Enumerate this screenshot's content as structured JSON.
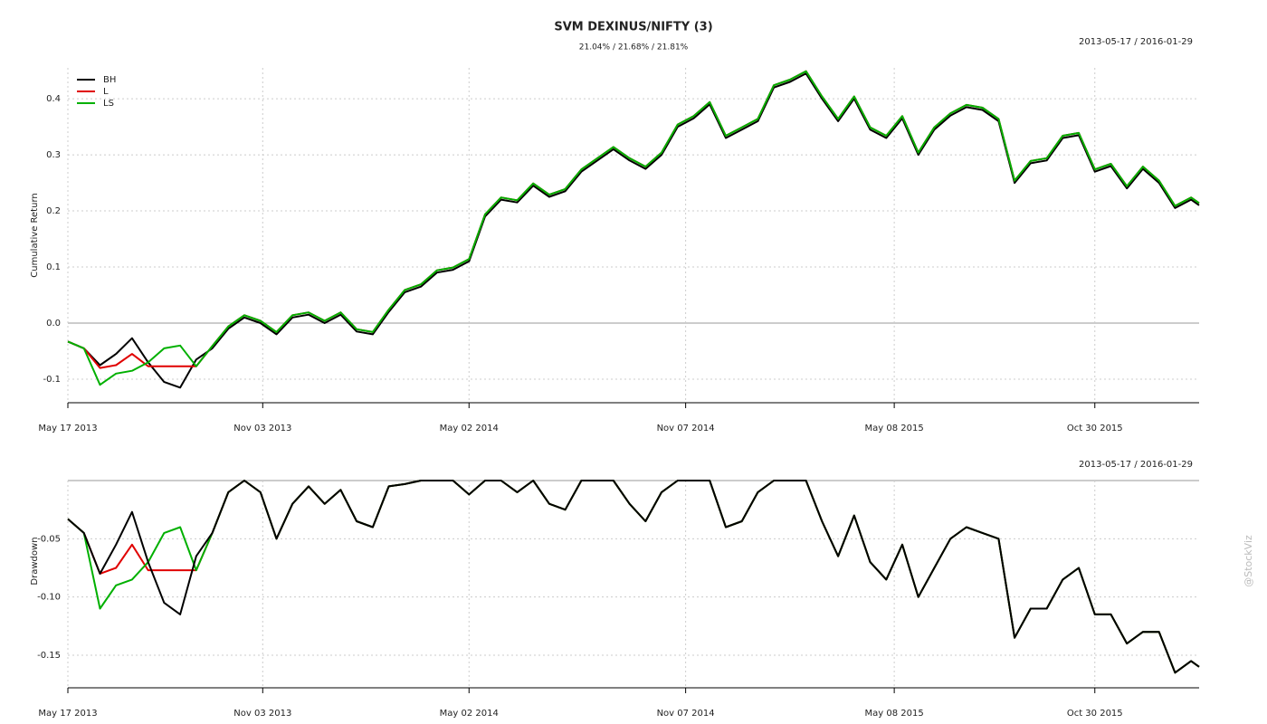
{
  "chart_data": [
    {
      "type": "line",
      "title": "SVM DEXINUS/NIFTY (3)",
      "subtitle": "21.04% / 21.68% / 21.81%",
      "date_range": "2013-05-17 / 2016-01-29",
      "ylabel": "Cumulative Return",
      "x": [
        "2013-05-17",
        "2013-05-31",
        "2013-06-14",
        "2013-06-28",
        "2013-07-12",
        "2013-07-26",
        "2013-08-09",
        "2013-08-23",
        "2013-09-06",
        "2013-09-20",
        "2013-10-04",
        "2013-10-18",
        "2013-11-01",
        "2013-11-15",
        "2013-11-29",
        "2013-12-13",
        "2013-12-27",
        "2014-01-10",
        "2014-01-24",
        "2014-02-07",
        "2014-02-21",
        "2014-03-07",
        "2014-03-21",
        "2014-04-04",
        "2014-04-18",
        "2014-05-02",
        "2014-05-16",
        "2014-05-30",
        "2014-06-13",
        "2014-06-27",
        "2014-07-11",
        "2014-07-25",
        "2014-08-08",
        "2014-08-22",
        "2014-09-05",
        "2014-09-19",
        "2014-10-03",
        "2014-10-17",
        "2014-10-31",
        "2014-11-14",
        "2014-11-28",
        "2014-12-12",
        "2014-12-26",
        "2015-01-09",
        "2015-01-23",
        "2015-02-06",
        "2015-02-20",
        "2015-03-06",
        "2015-03-20",
        "2015-04-03",
        "2015-04-17",
        "2015-05-01",
        "2015-05-15",
        "2015-05-29",
        "2015-06-12",
        "2015-06-26",
        "2015-07-10",
        "2015-07-24",
        "2015-08-07",
        "2015-08-21",
        "2015-09-04",
        "2015-09-18",
        "2015-10-02",
        "2015-10-16",
        "2015-10-30",
        "2015-11-13",
        "2015-11-27",
        "2015-12-11",
        "2015-12-25",
        "2016-01-08",
        "2016-01-22",
        "2016-01-29"
      ],
      "series": [
        {
          "name": "BH",
          "color": "#000000",
          "values": [
            -0.033,
            -0.045,
            -0.075,
            -0.055,
            -0.027,
            -0.07,
            -0.105,
            -0.115,
            -0.065,
            -0.045,
            -0.01,
            0.01,
            0.0,
            -0.02,
            0.01,
            0.015,
            0.0,
            0.015,
            -0.015,
            -0.02,
            0.02,
            0.055,
            0.065,
            0.09,
            0.095,
            0.11,
            0.19,
            0.22,
            0.215,
            0.245,
            0.225,
            0.235,
            0.27,
            0.29,
            0.31,
            0.29,
            0.275,
            0.3,
            0.35,
            0.365,
            0.39,
            0.33,
            0.345,
            0.36,
            0.42,
            0.43,
            0.445,
            0.4,
            0.36,
            0.4,
            0.345,
            0.33,
            0.365,
            0.3,
            0.345,
            0.37,
            0.385,
            0.38,
            0.36,
            0.25,
            0.285,
            0.29,
            0.33,
            0.335,
            0.27,
            0.28,
            0.24,
            0.275,
            0.25,
            0.205,
            0.22,
            0.21
          ]
        },
        {
          "name": "L",
          "color": "#e00000",
          "values": [
            -0.033,
            -0.045,
            -0.08,
            -0.075,
            -0.055,
            -0.077,
            -0.077,
            -0.077,
            -0.077,
            -0.041,
            -0.006,
            0.014,
            0.004,
            -0.016,
            0.014,
            0.019,
            0.004,
            0.019,
            -0.011,
            -0.016,
            0.024,
            0.059,
            0.069,
            0.094,
            0.099,
            0.114,
            0.194,
            0.224,
            0.219,
            0.249,
            0.229,
            0.239,
            0.274,
            0.294,
            0.314,
            0.294,
            0.279,
            0.304,
            0.354,
            0.369,
            0.394,
            0.334,
            0.349,
            0.364,
            0.424,
            0.434,
            0.449,
            0.404,
            0.364,
            0.404,
            0.349,
            0.334,
            0.369,
            0.304,
            0.349,
            0.374,
            0.389,
            0.384,
            0.364,
            0.254,
            0.289,
            0.294,
            0.334,
            0.339,
            0.274,
            0.284,
            0.244,
            0.279,
            0.254,
            0.209,
            0.224,
            0.214
          ]
        },
        {
          "name": "LS",
          "color": "#00b000",
          "values": [
            -0.033,
            -0.045,
            -0.11,
            -0.09,
            -0.085,
            -0.07,
            -0.045,
            -0.04,
            -0.077,
            -0.041,
            -0.006,
            0.014,
            0.004,
            -0.016,
            0.014,
            0.019,
            0.004,
            0.019,
            -0.011,
            -0.016,
            0.024,
            0.059,
            0.069,
            0.094,
            0.099,
            0.114,
            0.194,
            0.224,
            0.219,
            0.249,
            0.229,
            0.239,
            0.274,
            0.294,
            0.314,
            0.294,
            0.279,
            0.304,
            0.354,
            0.369,
            0.394,
            0.334,
            0.349,
            0.364,
            0.424,
            0.434,
            0.449,
            0.404,
            0.364,
            0.404,
            0.349,
            0.334,
            0.369,
            0.304,
            0.349,
            0.374,
            0.389,
            0.384,
            0.364,
            0.254,
            0.289,
            0.294,
            0.334,
            0.339,
            0.274,
            0.284,
            0.244,
            0.279,
            0.254,
            0.209,
            0.224,
            0.214
          ]
        }
      ],
      "ylim": [
        -0.142,
        0.455
      ],
      "yticks": [
        -0.1,
        {
          "value": 0,
          "label": "0.0"
        },
        0.1,
        0.2,
        0.3,
        0.4
      ],
      "xticks": [
        {
          "value": "2013-05-17",
          "label": "May 17 2013"
        },
        {
          "value": "2013-11-03",
          "label": "Nov 03 2013"
        },
        {
          "value": "2014-05-02",
          "label": "May 02 2014"
        },
        {
          "value": "2014-11-07",
          "label": "Nov 07 2014"
        },
        {
          "value": "2015-05-08",
          "label": "May 08 2015"
        },
        {
          "value": "2015-10-30",
          "label": "Oct 30 2015"
        }
      ],
      "legend": "top-left",
      "grid": true
    },
    {
      "type": "line",
      "date_range": "2013-05-17 / 2016-01-29",
      "ylabel": "Drawdown",
      "x": [
        "2013-05-17",
        "2013-05-31",
        "2013-06-14",
        "2013-06-28",
        "2013-07-12",
        "2013-07-26",
        "2013-08-09",
        "2013-08-23",
        "2013-09-06",
        "2013-09-20",
        "2013-10-04",
        "2013-10-18",
        "2013-11-01",
        "2013-11-15",
        "2013-11-29",
        "2013-12-13",
        "2013-12-27",
        "2014-01-10",
        "2014-01-24",
        "2014-02-07",
        "2014-02-21",
        "2014-03-07",
        "2014-03-21",
        "2014-04-04",
        "2014-04-18",
        "2014-05-02",
        "2014-05-16",
        "2014-05-30",
        "2014-06-13",
        "2014-06-27",
        "2014-07-11",
        "2014-07-25",
        "2014-08-08",
        "2014-08-22",
        "2014-09-05",
        "2014-09-19",
        "2014-10-03",
        "2014-10-17",
        "2014-10-31",
        "2014-11-14",
        "2014-11-28",
        "2014-12-12",
        "2014-12-26",
        "2015-01-09",
        "2015-01-23",
        "2015-02-06",
        "2015-02-20",
        "2015-03-06",
        "2015-03-20",
        "2015-04-03",
        "2015-04-17",
        "2015-05-01",
        "2015-05-15",
        "2015-05-29",
        "2015-06-12",
        "2015-06-26",
        "2015-07-10",
        "2015-07-24",
        "2015-08-07",
        "2015-08-21",
        "2015-09-04",
        "2015-09-18",
        "2015-10-02",
        "2015-10-16",
        "2015-10-30",
        "2015-11-13",
        "2015-11-27",
        "2015-12-11",
        "2015-12-25",
        "2016-01-08",
        "2016-01-22",
        "2016-01-29"
      ],
      "series": [
        {
          "name": "L",
          "color": "#e00000",
          "values": [
            -0.033,
            -0.045,
            -0.08,
            -0.075,
            -0.055,
            -0.077,
            -0.077,
            -0.077,
            -0.077,
            -0.045,
            -0.01,
            0,
            -0.01,
            -0.05,
            -0.02,
            -0.005,
            -0.02,
            -0.008,
            -0.035,
            -0.04,
            -0.005,
            -0.003,
            0,
            0,
            0,
            -0.012,
            0,
            0,
            -0.01,
            0,
            -0.02,
            -0.025,
            0,
            0,
            0,
            -0.02,
            -0.035,
            -0.01,
            0,
            0,
            0,
            -0.04,
            -0.035,
            -0.01,
            0,
            0,
            0,
            -0.035,
            -0.065,
            -0.03,
            -0.07,
            -0.085,
            -0.055,
            -0.1,
            -0.075,
            -0.05,
            -0.04,
            -0.045,
            -0.05,
            -0.135,
            -0.11,
            -0.11,
            -0.085,
            -0.075,
            -0.115,
            -0.115,
            -0.14,
            -0.13,
            -0.13,
            -0.165,
            -0.155,
            -0.16
          ]
        },
        {
          "name": "LS",
          "color": "#00b000",
          "values": [
            -0.033,
            -0.045,
            -0.11,
            -0.09,
            -0.085,
            -0.07,
            -0.045,
            -0.04,
            -0.077,
            -0.045,
            -0.01,
            0,
            -0.01,
            -0.05,
            -0.02,
            -0.005,
            -0.02,
            -0.008,
            -0.035,
            -0.04,
            -0.005,
            -0.003,
            0,
            0,
            0,
            -0.012,
            0,
            0,
            -0.01,
            0,
            -0.02,
            -0.025,
            0,
            0,
            0,
            -0.02,
            -0.035,
            -0.01,
            0,
            0,
            0,
            -0.04,
            -0.035,
            -0.01,
            0,
            0,
            0,
            -0.035,
            -0.065,
            -0.03,
            -0.07,
            -0.085,
            -0.055,
            -0.1,
            -0.075,
            -0.05,
            -0.04,
            -0.045,
            -0.05,
            -0.135,
            -0.11,
            -0.11,
            -0.085,
            -0.075,
            -0.115,
            -0.115,
            -0.14,
            -0.13,
            -0.13,
            -0.165,
            -0.155,
            -0.16
          ]
        },
        {
          "name": "BH",
          "color": "#000000",
          "values": [
            -0.033,
            -0.045,
            -0.08,
            -0.055,
            -0.027,
            -0.07,
            -0.105,
            -0.115,
            -0.065,
            -0.045,
            -0.01,
            0,
            -0.01,
            -0.05,
            -0.02,
            -0.005,
            -0.02,
            -0.008,
            -0.035,
            -0.04,
            -0.005,
            -0.003,
            0,
            0,
            0,
            -0.012,
            0,
            0,
            -0.01,
            0,
            -0.02,
            -0.025,
            0,
            0,
            0,
            -0.02,
            -0.035,
            -0.01,
            0,
            0,
            0,
            -0.04,
            -0.035,
            -0.01,
            0,
            0,
            0,
            -0.035,
            -0.065,
            -0.03,
            -0.07,
            -0.085,
            -0.055,
            -0.1,
            -0.075,
            -0.05,
            -0.04,
            -0.045,
            -0.05,
            -0.135,
            -0.11,
            -0.11,
            -0.085,
            -0.075,
            -0.115,
            -0.115,
            -0.14,
            -0.13,
            -0.13,
            -0.165,
            -0.155,
            -0.16
          ]
        }
      ],
      "ylim": [
        -0.178,
        0
      ],
      "yticks": [
        -0.15,
        {
          "value": -0.1,
          "label": "-0.10"
        },
        -0.05
      ],
      "xticks": [
        {
          "value": "2013-05-17",
          "label": "May 17 2013"
        },
        {
          "value": "2013-11-03",
          "label": "Nov 03 2013"
        },
        {
          "value": "2014-05-02",
          "label": "May 02 2014"
        },
        {
          "value": "2014-11-07",
          "label": "Nov 07 2014"
        },
        {
          "value": "2015-05-08",
          "label": "May 08 2015"
        },
        {
          "value": "2015-10-30",
          "label": "Oct 30 2015"
        }
      ],
      "grid": true
    }
  ],
  "watermark": "@StockViz"
}
